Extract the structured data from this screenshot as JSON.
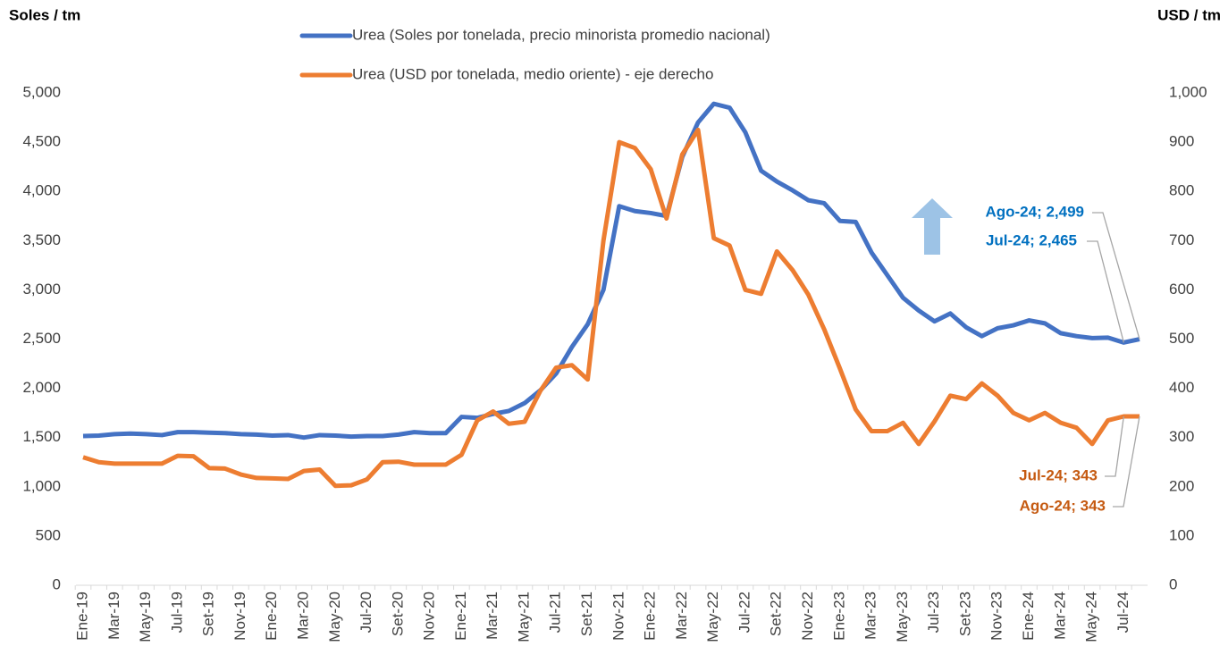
{
  "chart_data": {
    "type": "line",
    "y_label": "Soles / tm",
    "y2_label": "USD / tm",
    "categories": [
      "Ene-19",
      null,
      "Mar-19",
      null,
      "May-19",
      null,
      "Jul-19",
      null,
      "Set-19",
      null,
      "Nov-19",
      null,
      "Ene-20",
      null,
      "Mar-20",
      null,
      "May-20",
      null,
      "Jul-20",
      null,
      "Set-20",
      null,
      "Nov-20",
      null,
      "Ene-21",
      null,
      "Mar-21",
      null,
      "May-21",
      null,
      "Jul-21",
      null,
      "Set-21",
      null,
      "Nov-21",
      null,
      "Ene-22",
      null,
      "Mar-22",
      null,
      "May-22",
      null,
      "Jul-22",
      null,
      "Set-22",
      null,
      "Nov-22",
      null,
      "Ene-23",
      null,
      "Mar-23",
      null,
      "May-23",
      null,
      "Jul-23",
      null,
      "Set-23",
      null,
      "Nov-23",
      null,
      "Ene-24",
      null,
      "Mar-24",
      null,
      "May-24",
      null,
      "Jul-24",
      null
    ],
    "series": [
      {
        "name": "Urea (Soles por tonelada, precio minorista promedio nacional)",
        "color": "#4472c4",
        "axis": "y",
        "values": [
          1515,
          1520,
          1535,
          1540,
          1535,
          1525,
          1555,
          1555,
          1550,
          1545,
          1535,
          1530,
          1520,
          1525,
          1500,
          1525,
          1520,
          1510,
          1515,
          1515,
          1530,
          1555,
          1545,
          1545,
          1710,
          1700,
          1740,
          1770,
          1850,
          1980,
          2150,
          2420,
          2650,
          3000,
          3850,
          3800,
          3780,
          3750,
          4350,
          4700,
          4890,
          4850,
          4600,
          4210,
          4100,
          4010,
          3910,
          3880,
          3700,
          3690,
          3380,
          3150,
          2920,
          2790,
          2680,
          2760,
          2620,
          2530,
          2610,
          2640,
          2690,
          2660,
          2560,
          2530,
          2510,
          2515,
          2465,
          2499
        ],
        "value_labels": [
          null,
          null,
          null,
          null,
          null,
          null,
          null,
          null,
          null,
          null,
          null,
          null,
          null,
          null,
          null,
          null,
          null,
          null,
          null,
          null,
          null,
          null,
          null,
          null,
          null,
          null,
          null,
          null,
          null,
          null,
          null,
          null,
          null,
          null,
          null,
          null,
          null,
          null,
          null,
          null,
          null,
          null,
          null,
          null,
          null,
          null,
          null,
          null,
          null,
          null,
          null,
          null,
          null,
          null,
          null,
          null,
          null,
          null,
          null,
          null,
          null,
          null,
          null,
          null,
          null,
          null,
          "Jul-24; 2,465",
          "Ago-24; 2,499"
        ],
        "label_color": "#0070c0"
      },
      {
        "name": "Urea (USD por tonelada, medio oriente) - eje derecho",
        "color": "#ed7d31",
        "axis": "y2",
        "values": [
          260,
          250,
          247,
          247,
          247,
          247,
          263,
          262,
          238,
          237,
          225,
          218,
          217,
          216,
          232,
          235,
          202,
          203,
          215,
          250,
          251,
          245,
          245,
          245,
          265,
          335,
          353,
          328,
          332,
          395,
          442,
          447,
          418,
          700,
          900,
          888,
          845,
          745,
          875,
          925,
          705,
          690,
          600,
          592,
          678,
          640,
          590,
          520,
          440,
          357,
          313,
          313,
          330,
          287,
          333,
          385,
          378,
          410,
          385,
          350,
          335,
          350,
          330,
          320,
          287,
          335,
          343,
          343
        ],
        "value_labels": [
          null,
          null,
          null,
          null,
          null,
          null,
          null,
          null,
          null,
          null,
          null,
          null,
          null,
          null,
          null,
          null,
          null,
          null,
          null,
          null,
          null,
          null,
          null,
          null,
          null,
          null,
          null,
          null,
          null,
          null,
          null,
          null,
          null,
          null,
          null,
          null,
          null,
          null,
          null,
          null,
          null,
          null,
          null,
          null,
          null,
          null,
          null,
          null,
          null,
          null,
          null,
          null,
          null,
          null,
          null,
          null,
          null,
          null,
          null,
          null,
          null,
          null,
          null,
          null,
          null,
          null,
          "Jul-24; 343",
          "Ago-24; 343"
        ],
        "label_color": "#c55a11"
      }
    ],
    "ylim": [
      0,
      5000
    ],
    "yticks": [
      0,
      500,
      {
        "value": 1000,
        "label": "1,000"
      },
      {
        "value": 1500,
        "label": "1,500"
      },
      {
        "value": 2000,
        "label": "2,000"
      },
      {
        "value": 2500,
        "label": "2,500"
      },
      {
        "value": 3000,
        "label": "3,000"
      },
      {
        "value": 3500,
        "label": "3,500"
      },
      {
        "value": 4000,
        "label": "4,000"
      },
      {
        "value": 4500,
        "label": "4,500"
      },
      {
        "value": 5000,
        "label": "5,000"
      }
    ],
    "y2lim": [
      0,
      1000
    ],
    "y2ticks": [
      0,
      100,
      200,
      300,
      400,
      500,
      600,
      700,
      800,
      900,
      {
        "value": 1000,
        "label": "1,000"
      }
    ],
    "grid": false
  }
}
